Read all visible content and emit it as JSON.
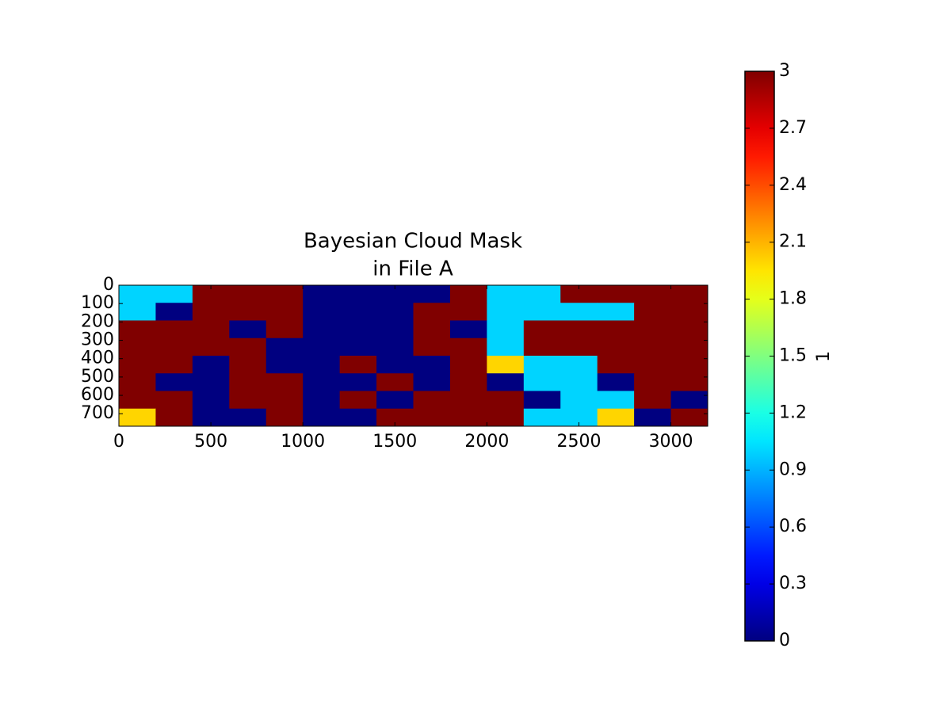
{
  "chart_data": {
    "type": "heatmap",
    "title": [
      "Bayesian Cloud Mask",
      "in File A"
    ],
    "xbins": [
      0,
      200,
      400,
      600,
      800,
      1000,
      1200,
      1400,
      1600,
      1800,
      2000,
      2200,
      2400,
      2600,
      2800,
      3000,
      3200
    ],
    "ybins": [
      0,
      96,
      192,
      288,
      384,
      480,
      576,
      672,
      768
    ],
    "values": [
      [
        1,
        1,
        3,
        3,
        3,
        0,
        0,
        0,
        0,
        3,
        1,
        1,
        3,
        3,
        3,
        3
      ],
      [
        1,
        0,
        3,
        3,
        3,
        0,
        0,
        0,
        3,
        3,
        1,
        1,
        1,
        1,
        3,
        3
      ],
      [
        3,
        3,
        3,
        0,
        3,
        0,
        0,
        0,
        3,
        0,
        1,
        3,
        3,
        3,
        3,
        3
      ],
      [
        3,
        3,
        3,
        3,
        0,
        0,
        0,
        0,
        3,
        3,
        1,
        3,
        3,
        3,
        3,
        3
      ],
      [
        3,
        3,
        0,
        3,
        0,
        0,
        3,
        0,
        0,
        3,
        2,
        1,
        1,
        3,
        3,
        3
      ],
      [
        3,
        0,
        0,
        3,
        3,
        0,
        0,
        3,
        0,
        3,
        0,
        1,
        1,
        0,
        3,
        3
      ],
      [
        3,
        3,
        0,
        3,
        3,
        0,
        3,
        0,
        3,
        3,
        3,
        0,
        1,
        1,
        3,
        0
      ],
      [
        2,
        3,
        0,
        0,
        3,
        0,
        0,
        3,
        3,
        3,
        3,
        1,
        1,
        2,
        0,
        3
      ]
    ],
    "xlim": [
      0,
      3200
    ],
    "xticks": [
      0,
      500,
      1000,
      1500,
      2000,
      2500,
      3000
    ],
    "ylim": [
      0,
      768
    ],
    "yticks": [
      0,
      100,
      200,
      300,
      400,
      500,
      600,
      700
    ],
    "yinvert": true,
    "colormap": "jet",
    "colorbar": {
      "label": "1",
      "lim": [
        0,
        3
      ],
      "ticks": [
        0,
        0.3,
        0.6,
        0.9,
        1.2,
        1.5,
        1.8,
        2.1,
        2.4,
        2.7,
        3
      ]
    }
  }
}
